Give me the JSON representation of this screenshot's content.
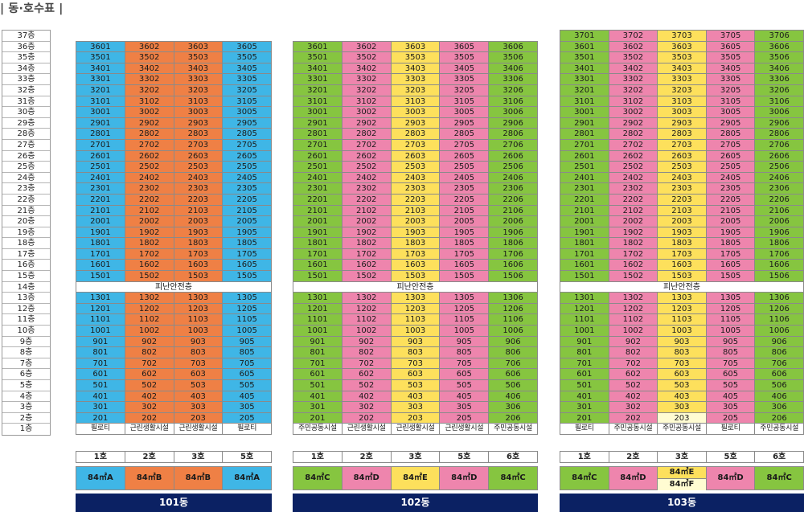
{
  "title": "| 동·호수표 |",
  "floors": [
    "37층",
    "36층",
    "35층",
    "34층",
    "33층",
    "32층",
    "31층",
    "30층",
    "29층",
    "28층",
    "27층",
    "26층",
    "25층",
    "24층",
    "23층",
    "22층",
    "21층",
    "20층",
    "19층",
    "18층",
    "17층",
    "16층",
    "15층",
    "14층",
    "13층",
    "12층",
    "11층",
    "10층",
    "9층",
    "8층",
    "7층",
    "6층",
    "5층",
    "4층",
    "3층",
    "2층",
    "1층"
  ],
  "refuge_label": "피난안전층",
  "colors": {
    "blue": "#3fb6e6",
    "orange": "#ef8045",
    "green": "#86c540",
    "pink": "#ee85ad",
    "yellow": "#fde05c",
    "cream": "#fffcd2",
    "navy": "#0b2163"
  },
  "buildings": [
    {
      "name": "101동",
      "top_floor": 36,
      "lines": [
        "01",
        "02",
        "03",
        "05"
      ],
      "line_colors": [
        "blue",
        "orange",
        "orange",
        "blue"
      ],
      "ho_labels": [
        "1호",
        "2호",
        "3호",
        "5호"
      ],
      "types": [
        [
          "84㎡A"
        ],
        [
          "84㎡B"
        ],
        [
          "84㎡B"
        ],
        [
          "84㎡A"
        ]
      ],
      "type_colors": [
        "blue",
        "orange",
        "orange",
        "blue"
      ],
      "base_labels": [
        "필로티",
        "근린생활시설",
        "근린생활시설",
        "필로티"
      ],
      "overrides": {}
    },
    {
      "name": "102동",
      "top_floor": 36,
      "lines": [
        "01",
        "02",
        "03",
        "05",
        "06"
      ],
      "line_colors": [
        "green",
        "pink",
        "yellow",
        "pink",
        "green"
      ],
      "ho_labels": [
        "1호",
        "2호",
        "3호",
        "5호",
        "6호"
      ],
      "types": [
        [
          "84㎡C"
        ],
        [
          "84㎡D"
        ],
        [
          "84㎡E"
        ],
        [
          "84㎡D"
        ],
        [
          "84㎡C"
        ]
      ],
      "type_colors": [
        "green",
        "pink",
        "yellow",
        "pink",
        "green"
      ],
      "base_labels": [
        "주민공동시설",
        "근린생활시설",
        "근린생활시설",
        "근린생활시설",
        "주민공동시설"
      ],
      "overrides": {}
    },
    {
      "name": "103동",
      "top_floor": 37,
      "lines": [
        "01",
        "02",
        "03",
        "05",
        "06"
      ],
      "line_colors": [
        "green",
        "pink",
        "yellow",
        "pink",
        "green"
      ],
      "ho_labels": [
        "1호",
        "2호",
        "3호",
        "5호",
        "6호"
      ],
      "types": [
        [
          "84㎡C"
        ],
        [
          "84㎡D"
        ],
        [
          "84㎡E",
          "84㎡F"
        ],
        [
          "84㎡D"
        ],
        [
          "84㎡C"
        ]
      ],
      "type_colors": [
        "green",
        "pink",
        "yellow",
        "pink",
        "green"
      ],
      "base_labels": [
        "필로티",
        "주민공동시설",
        "주민공동시설",
        "필로티",
        "주민공동시설"
      ],
      "overrides": {
        "203": "cream"
      }
    }
  ]
}
